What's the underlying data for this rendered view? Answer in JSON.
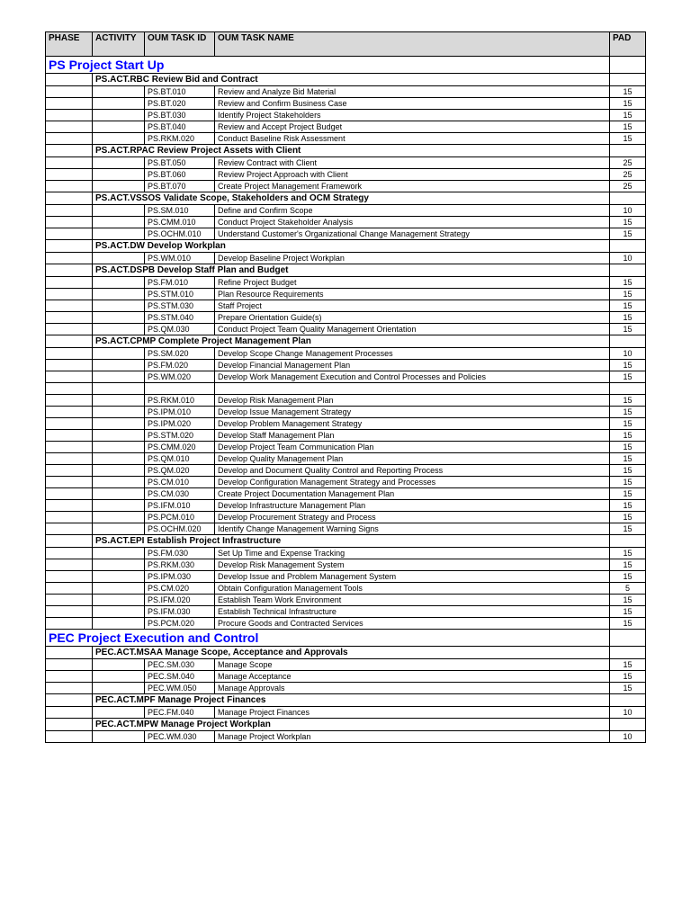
{
  "headers": {
    "phase": "PHASE",
    "activity": "ACTIVITY",
    "taskid": "OUM TASK ID",
    "taskname": "OUM TASK NAME",
    "pad": "PAD"
  },
  "phases": [
    {
      "title": "PS  Project Start Up",
      "activities": [
        {
          "title": "PS.ACT.RBC  Review Bid and Contract",
          "tasks": [
            {
              "id": "PS.BT.010",
              "name": "Review and Analyze Bid Material",
              "pad": "15"
            },
            {
              "id": "PS.BT.020",
              "name": "Review and Confirm Business Case",
              "pad": "15"
            },
            {
              "id": "PS.BT.030",
              "name": "Identify Project Stakeholders",
              "pad": "15"
            },
            {
              "id": "PS.BT.040",
              "name": "Review and Accept Project Budget",
              "pad": "15"
            },
            {
              "id": "PS.RKM.020",
              "name": "Conduct Baseline Risk Assessment",
              "pad": "15"
            }
          ]
        },
        {
          "title": "PS.ACT.RPAC Review Project Assets with Client",
          "tasks": [
            {
              "id": "PS.BT.050",
              "name": "Review Contract with Client",
              "pad": "25"
            },
            {
              "id": "PS.BT.060",
              "name": "Review Project Approach with Client",
              "pad": "25"
            },
            {
              "id": "PS.BT.070",
              "name": "Create Project Management Framework",
              "pad": "25"
            }
          ]
        },
        {
          "title": "PS.ACT.VSSOS  Validate Scope, Stakeholders and OCM Strategy",
          "tasks": [
            {
              "id": "PS.SM.010",
              "name": "Define and Confirm Scope",
              "pad": "10"
            },
            {
              "id": "PS.CMM.010",
              "name": "Conduct Project Stakeholder Analysis",
              "pad": "15"
            },
            {
              "id": "PS.OCHM.010",
              "name": "Understand Customer's Organizational Change Management Strategy",
              "pad": "15"
            }
          ]
        },
        {
          "title": "PS.ACT.DW  Develop Workplan",
          "tasks": [
            {
              "id": "PS.WM.010",
              "name": "Develop Baseline Project Workplan",
              "pad": "10"
            }
          ]
        },
        {
          "title": "PS.ACT.DSPB  Develop Staff Plan and Budget",
          "tasks": [
            {
              "id": "PS.FM.010",
              "name": "Refine Project Budget",
              "pad": "15"
            },
            {
              "id": "PS.STM.010",
              "name": "Plan Resource Requirements",
              "pad": "15"
            },
            {
              "id": "PS.STM.030",
              "name": "Staff Project",
              "pad": "15"
            },
            {
              "id": "PS.STM.040",
              "name": "Prepare Orientation Guide(s)",
              "pad": "15"
            },
            {
              "id": "PS.QM.030",
              "name": "Conduct Project Team Quality Management Orientation",
              "pad": "15"
            }
          ]
        },
        {
          "title": "PS.ACT.CPMP  Complete Project Management Plan",
          "tasks": [
            {
              "id": "PS.SM.020",
              "name": "Develop Scope Change Management Processes",
              "pad": "10"
            },
            {
              "id": "PS.FM.020",
              "name": "Develop Financial Management Plan",
              "pad": "15"
            },
            {
              "id": "PS.WM.020",
              "name": "Develop Work Management Execution and Control Processes and Policies",
              "pad": "15"
            }
          ],
          "spacer_after": true,
          "tasks2": [
            {
              "id": "PS.RKM.010",
              "name": "Develop Risk Management Plan",
              "pad": "15"
            },
            {
              "id": "PS.IPM.010",
              "name": "Develop Issue Management Strategy",
              "pad": "15"
            },
            {
              "id": "PS.IPM.020",
              "name": "Develop Problem Management Strategy",
              "pad": "15"
            },
            {
              "id": "PS.STM.020",
              "name": "Develop Staff Management Plan",
              "pad": "15"
            },
            {
              "id": "PS.CMM.020",
              "name": "Develop Project Team Communication Plan",
              "pad": "15"
            },
            {
              "id": "PS.QM.010",
              "name": "Develop Quality Management Plan",
              "pad": "15"
            },
            {
              "id": "PS.QM.020",
              "name": "Develop and Document Quality Control and Reporting Process",
              "pad": "15"
            },
            {
              "id": "PS.CM.010",
              "name": "Develop Configuration Management Strategy and Processes",
              "pad": "15"
            },
            {
              "id": "PS.CM.030",
              "name": "Create Project Documentation Management Plan",
              "pad": "15"
            },
            {
              "id": "PS.IFM.010",
              "name": "Develop Infrastructure Management Plan",
              "pad": "15"
            },
            {
              "id": "PS.PCM.010",
              "name": "Develop Procurement Strategy and Process",
              "pad": "15"
            },
            {
              "id": "PS.OCHM.020",
              "name": "Identify Change Management Warning Signs",
              "pad": "15"
            }
          ]
        },
        {
          "title": "PS.ACT.EPI  Establish Project Infrastructure",
          "tasks": [
            {
              "id": "PS.FM.030",
              "name": "Set Up Time and Expense Tracking",
              "pad": "15"
            },
            {
              "id": "PS.RKM.030",
              "name": "Develop Risk Management System",
              "pad": "15"
            },
            {
              "id": "PS.IPM.030",
              "name": "Develop Issue and Problem Management System",
              "pad": "15"
            },
            {
              "id": "PS.CM.020",
              "name": "Obtain Configuration Management Tools",
              "pad": "5"
            },
            {
              "id": "PS.IFM.020",
              "name": "Establish Team Work Environment",
              "pad": "15"
            },
            {
              "id": "PS.IFM.030",
              "name": "Establish Technical Infrastructure",
              "pad": "15"
            },
            {
              "id": "PS.PCM.020",
              "name": "Procure Goods and Contracted Services",
              "pad": "15"
            }
          ]
        }
      ]
    },
    {
      "title": "PEC  Project Execution and Control",
      "activities": [
        {
          "title": "PEC.ACT.MSAA  Manage Scope, Acceptance and Approvals",
          "tasks": [
            {
              "id": "PEC.SM.030",
              "name": "Manage Scope",
              "pad": "15"
            },
            {
              "id": "PEC.SM.040",
              "name": "Manage Acceptance",
              "pad": "15"
            },
            {
              "id": "PEC.WM.050",
              "name": "Manage Approvals",
              "pad": "15"
            }
          ]
        },
        {
          "title": "PEC.ACT.MPF  Manage Project Finances",
          "tasks": [
            {
              "id": "PEC.FM.040",
              "name": "Manage Project Finances",
              "pad": "10"
            }
          ]
        },
        {
          "title": "PEC.ACT.MPW  Manage Project Workplan",
          "tasks": [
            {
              "id": "PEC.WM.030",
              "name": "Manage Project Workplan",
              "pad": "10"
            }
          ]
        }
      ]
    }
  ]
}
